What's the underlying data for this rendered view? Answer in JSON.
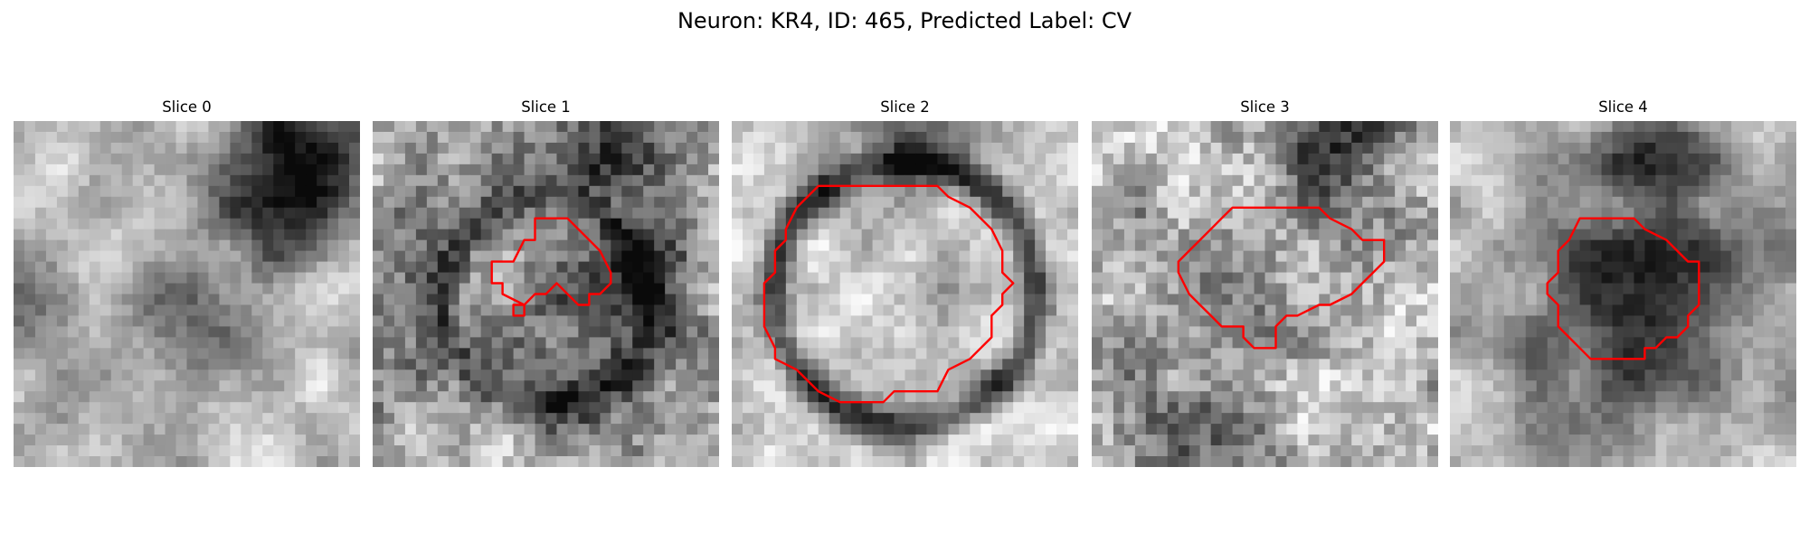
{
  "figure": {
    "title": "Neuron: KR4, ID: 465, Predicted Label: CV"
  },
  "panels": [
    {
      "title": "Slice 0",
      "has_contour": false,
      "contour_color": "#ff0000"
    },
    {
      "title": "Slice 1",
      "has_contour": true,
      "contour_color": "#ff0000"
    },
    {
      "title": "Slice 2",
      "has_contour": true,
      "contour_color": "#ff0000"
    },
    {
      "title": "Slice 3",
      "has_contour": true,
      "contour_color": "#ff0000"
    },
    {
      "title": "Slice 4",
      "has_contour": true,
      "contour_color": "#ff0000"
    }
  ],
  "colors": {
    "background": "#ffffff",
    "colormap": "grayscale",
    "contour": "#ff0000"
  }
}
